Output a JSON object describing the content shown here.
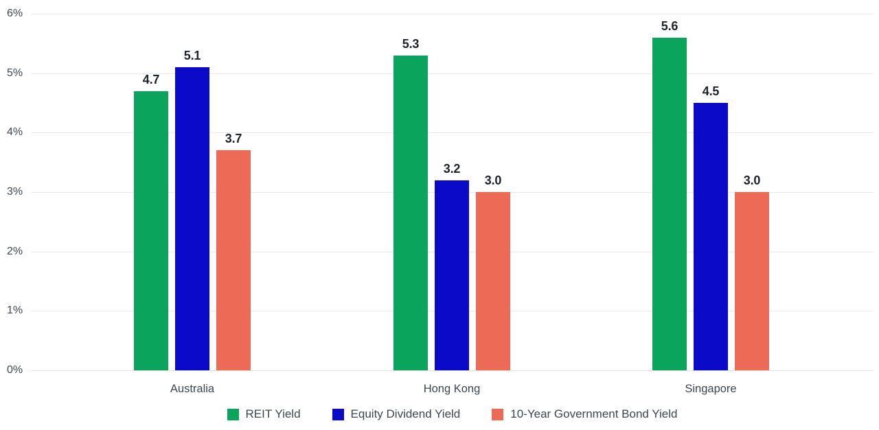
{
  "chart_data": {
    "type": "bar",
    "title": "",
    "categories": [
      "Australia",
      "Hong Kong",
      "Singapore"
    ],
    "series": [
      {
        "name": "REIT Yield",
        "color": "#0aa45c",
        "values": [
          4.7,
          5.3,
          5.6
        ]
      },
      {
        "name": "Equity Dividend Yield",
        "color": "#0a0ac8",
        "values": [
          5.1,
          3.2,
          4.5
        ]
      },
      {
        "name": "10-Year Government Bond Yield",
        "color": "#ed6a56",
        "values": [
          3.7,
          3.0,
          3.0
        ]
      }
    ],
    "value_labels": {
      "Australia": [
        "4.7",
        "5.1",
        "3.7"
      ],
      "Hong Kong": [
        "5.3",
        "3.2",
        "3.0"
      ],
      "Singapore": [
        "5.6",
        "4.5",
        "3.0"
      ]
    },
    "xlabel": "",
    "ylabel": "",
    "y_axis": {
      "unit": "%",
      "min": 0,
      "max": 6,
      "tick_labels": [
        "0%",
        "1%",
        "2%",
        "3%",
        "4%",
        "5%",
        "6%"
      ]
    },
    "grid": true,
    "legend_position": "bottom"
  },
  "colors": {
    "background": "#ffffff",
    "gridline": "#e9e9e9",
    "axis_text": "#3c4650",
    "value_label_text": "#1b222c",
    "reit_green": "#0aa45c",
    "equity_blue": "#0a0ac8",
    "bond_salmon": "#ed6a56"
  }
}
